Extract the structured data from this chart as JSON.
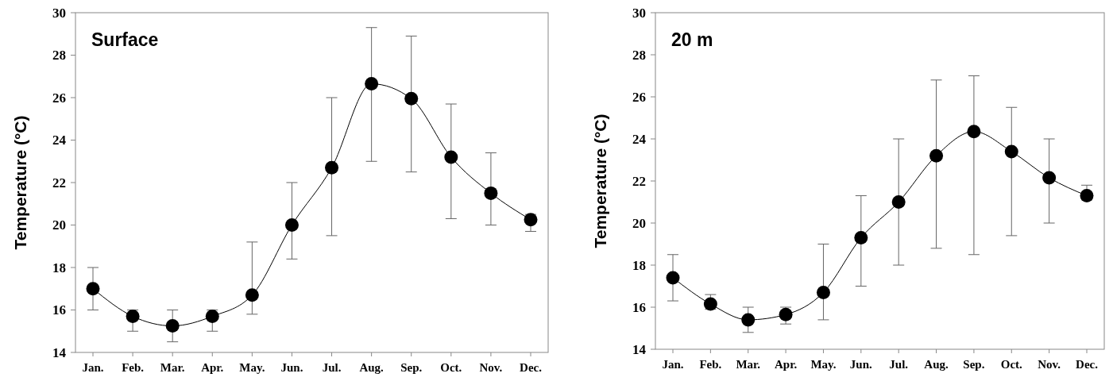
{
  "chart_data": [
    {
      "type": "line",
      "title": "Surface",
      "ylabel": "Temperature (°C)",
      "categories": [
        "Jan.",
        "Feb.",
        "Mar.",
        "Apr.",
        "May.",
        "Jun.",
        "Jul.",
        "Aug.",
        "Sep.",
        "Oct.",
        "Nov.",
        "Dec."
      ],
      "series": [
        {
          "color": "#000000",
          "values": [
            17.0,
            15.7,
            15.25,
            15.7,
            16.7,
            20.0,
            22.7,
            26.65,
            25.95,
            23.2,
            21.5,
            20.25
          ],
          "errors": [
            [
              16,
              18
            ],
            [
              15,
              16
            ],
            [
              14.5,
              16
            ],
            [
              15,
              16
            ],
            [
              15.8,
              19.2
            ],
            [
              18.4,
              22
            ],
            [
              19.5,
              26
            ],
            [
              23,
              29.3
            ],
            [
              22.5,
              28.9
            ],
            [
              20.3,
              25.7
            ],
            [
              20,
              23.4
            ],
            [
              19.7,
              20.5
            ]
          ]
        }
      ],
      "ylim": [
        14,
        30
      ],
      "yticks": [
        14,
        16,
        18,
        20,
        22,
        24,
        26,
        28,
        30
      ],
      "marker": "circle",
      "line_style": "solid",
      "grid": false
    },
    {
      "type": "line",
      "title": "20 m",
      "ylabel": "Temperature (°C)",
      "categories": [
        "Jan.",
        "Feb.",
        "Mar.",
        "Apr.",
        "May.",
        "Jun.",
        "Jul.",
        "Aug.",
        "Sep.",
        "Oct.",
        "Nov.",
        "Dec."
      ],
      "series": [
        {
          "color": "#000000",
          "values": [
            17.4,
            16.15,
            15.4,
            15.65,
            16.7,
            19.3,
            21.0,
            23.2,
            24.35,
            23.4,
            22.15,
            21.3
          ],
          "errors": [
            [
              16.3,
              18.5
            ],
            [
              15.9,
              16.6
            ],
            [
              14.8,
              16
            ],
            [
              15.2,
              16
            ],
            [
              15.4,
              19
            ],
            [
              17,
              21.3
            ],
            [
              18,
              24
            ],
            [
              18.8,
              26.8
            ],
            [
              18.5,
              27
            ],
            [
              19.4,
              25.5
            ],
            [
              20,
              24
            ],
            [
              21.1,
              21.8
            ]
          ]
        }
      ],
      "ylim": [
        14,
        30
      ],
      "yticks": [
        14,
        16,
        18,
        20,
        22,
        24,
        26,
        28,
        30
      ],
      "marker": "circle",
      "line_style": "solid",
      "grid": false
    }
  ]
}
